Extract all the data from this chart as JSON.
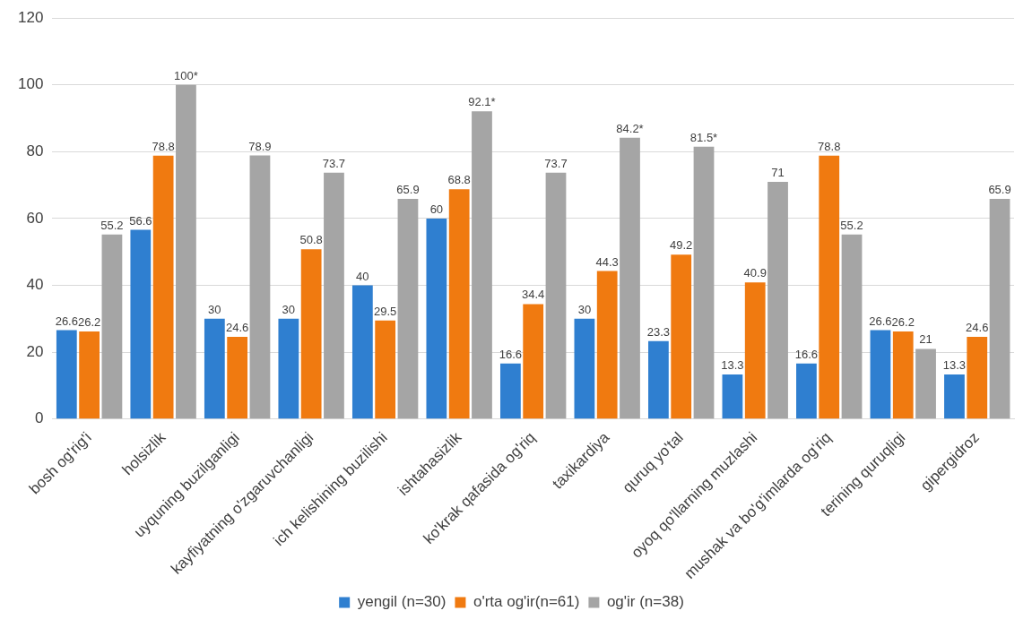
{
  "chart_data": {
    "type": "bar",
    "categories": [
      "bosh og'rig'i",
      "holsizlik",
      "uyquning buzilganligi",
      "kayfiyatning o'zgaruvchanligi",
      "ich kelishining buzilishi",
      "ishtahasizlik",
      "ko'krak qafasida og'riq",
      "taxikardiya",
      "quruq yo'tal",
      "oyoq qo'llarning muzlashi",
      "mushak va bo'g'imlarda og'riq",
      "terining quruqligi",
      "gipergidroz"
    ],
    "series": [
      {
        "name": "yengil (n=30)",
        "color": "#2f7fd0",
        "values": [
          26.6,
          56.6,
          30,
          30,
          40,
          60,
          16.6,
          30,
          23.3,
          13.3,
          16.6,
          26.6,
          13.3
        ],
        "value_labels": [
          "26.6",
          "56.6",
          "30",
          "30",
          "40",
          "60",
          "16.6",
          "30",
          "23.3",
          "13.3",
          "16.6",
          "26.6",
          "13.3"
        ]
      },
      {
        "name": "o'rta og'ir(n=61)",
        "color": "#f07a10",
        "values": [
          26.2,
          78.8,
          24.6,
          50.8,
          29.5,
          68.8,
          34.4,
          44.3,
          49.2,
          40.9,
          78.8,
          26.2,
          24.6
        ],
        "value_labels": [
          "26.2",
          "78.8",
          "24.6",
          "50.8",
          "29.5",
          "68.8",
          "34.4",
          "44.3",
          "49.2",
          "40.9",
          "78.8",
          "26.2",
          "24.6"
        ]
      },
      {
        "name": "og'ir (n=38)",
        "color": "#a5a5a5",
        "values": [
          55.2,
          100,
          78.9,
          73.7,
          65.9,
          92.1,
          73.7,
          84.2,
          81.5,
          71,
          55.2,
          21,
          65.9
        ],
        "value_labels": [
          "55.2",
          "100*",
          "78.9",
          "73.7",
          "65.9",
          "92.1*",
          "73.7",
          "84.2*",
          "81.5*",
          "71",
          "55.2",
          "21",
          "65.9"
        ]
      }
    ],
    "ylim": [
      0,
      120
    ],
    "yticks": [
      0,
      20,
      40,
      60,
      80,
      100,
      120
    ],
    "grid": "y",
    "legend": "bottom"
  }
}
